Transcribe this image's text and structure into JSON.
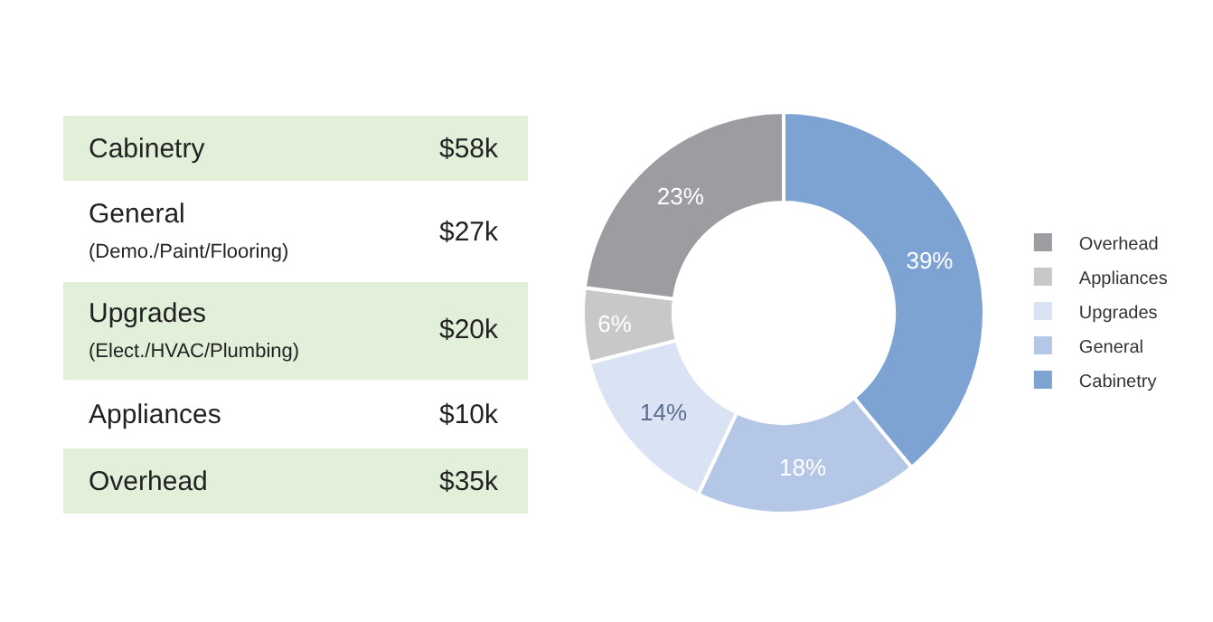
{
  "chart_data": [
    {
      "type": "other",
      "categories": [
        "Cabinetry",
        "General\n(Demo./Paint/Flooring)",
        "Upgrades\n(Elect./HVAC/Plumbing)",
        "Appliances",
        "Overhead"
      ],
      "value_labels": [
        "$58k",
        "$27k",
        "$20k",
        "$10k",
        "$35k"
      ],
      "colors": [
        "#e2efd9",
        "#ffffff",
        "#e2efd9",
        "#ffffff",
        "#e2efd9"
      ]
    },
    {
      "type": "donut",
      "categories": [
        "Cabinetry",
        "General",
        "Upgrades",
        "Appliances",
        "Overhead"
      ],
      "values": [
        39,
        18,
        14,
        6,
        23
      ],
      "colors": [
        "#7da3d3",
        "#b4c7e7",
        "#dae3f3",
        "#c8c8c9",
        "#9c9da1"
      ],
      "value_labels": [
        "39%",
        "18%",
        "14%",
        "6%",
        "23%"
      ],
      "legend": "right"
    }
  ]
}
